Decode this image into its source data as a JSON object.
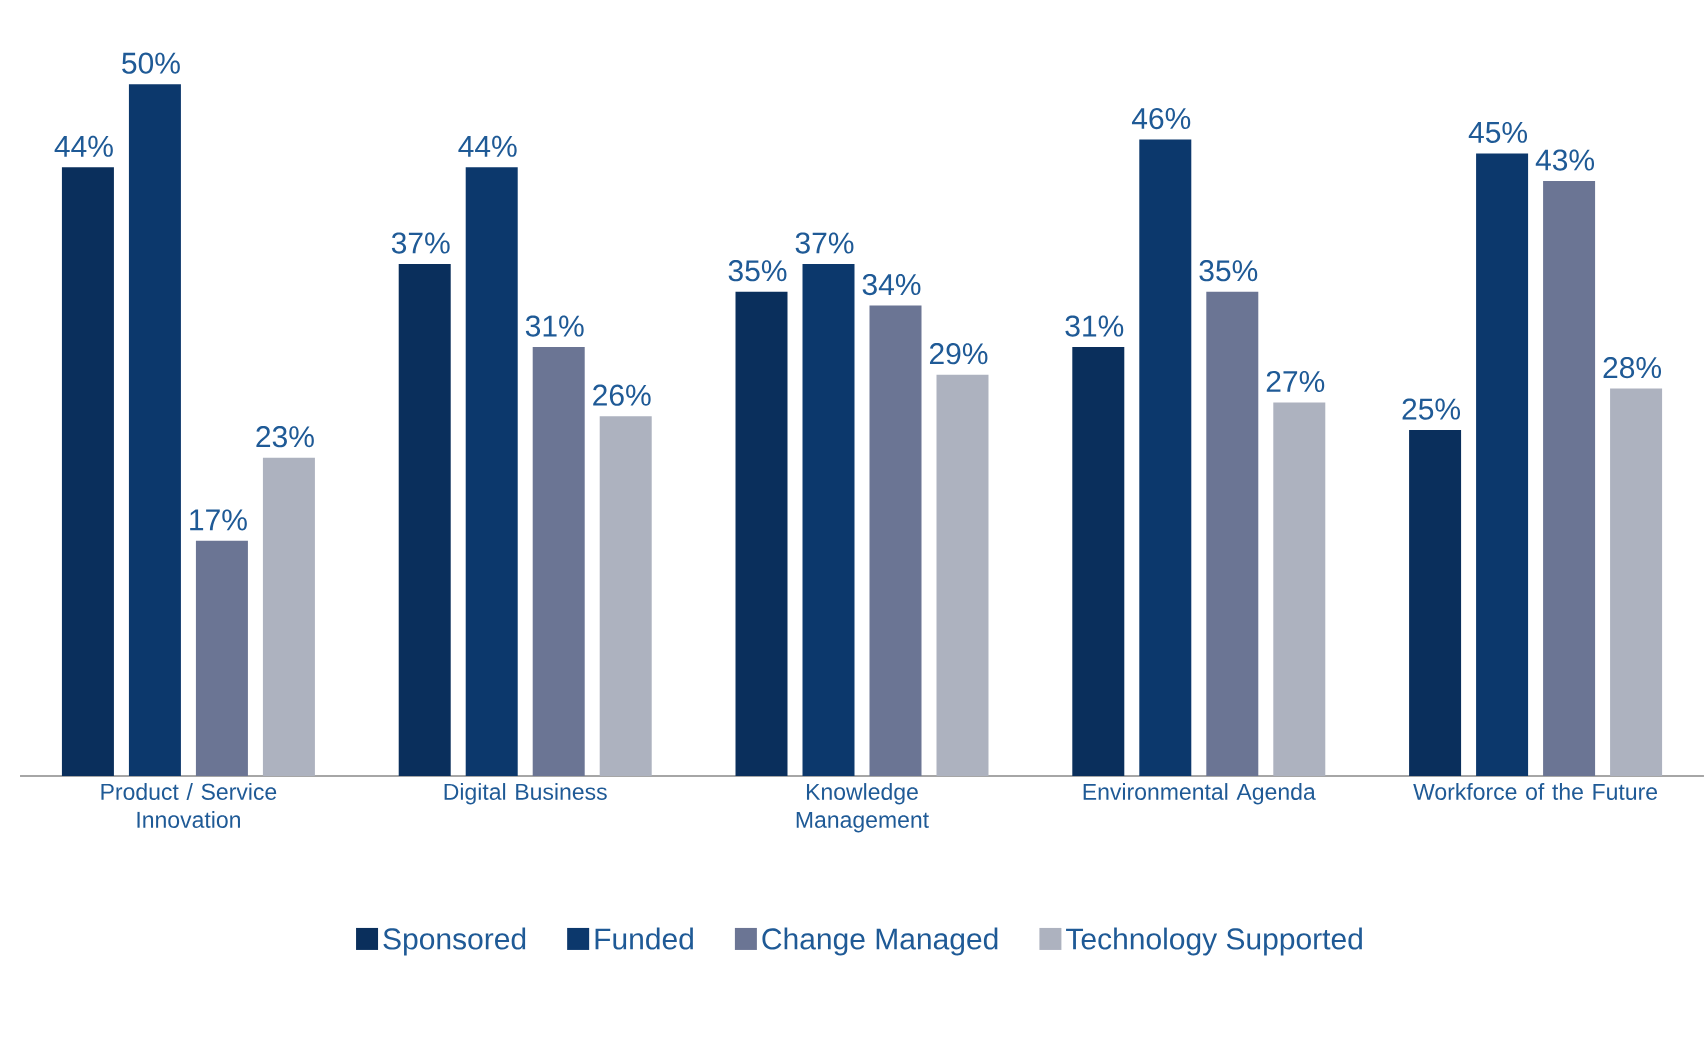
{
  "chart_data": {
    "type": "bar",
    "legend": "bottom",
    "categories": [
      "Product / Service Innovation",
      "Digital Business",
      "Knowledge Management",
      "Environmental Agenda",
      "Workforce of the Future"
    ],
    "series": [
      {
        "name": "Sponsored",
        "color": "#0a2f5c",
        "values": [
          44,
          37,
          35,
          31,
          25
        ],
        "value_labels": [
          "44%",
          "37%",
          "35%",
          "31%",
          "25%"
        ]
      },
      {
        "name": "Funded",
        "color": "#0c386c",
        "values": [
          50,
          44,
          37,
          46,
          45
        ],
        "value_labels": [
          "50%",
          "44%",
          "37%",
          "46%",
          "45%"
        ]
      },
      {
        "name": "Change Managed",
        "color": "#6b7594",
        "values": [
          17,
          31,
          34,
          35,
          43
        ],
        "value_labels": [
          "17%",
          "31%",
          "34%",
          "35%",
          "43%"
        ]
      },
      {
        "name": "Technology Supported",
        "color": "#adb2bf",
        "values": [
          23,
          26,
          29,
          27,
          28
        ],
        "value_labels": [
          "23%",
          "26%",
          "29%",
          "27%",
          "28%"
        ]
      }
    ]
  }
}
